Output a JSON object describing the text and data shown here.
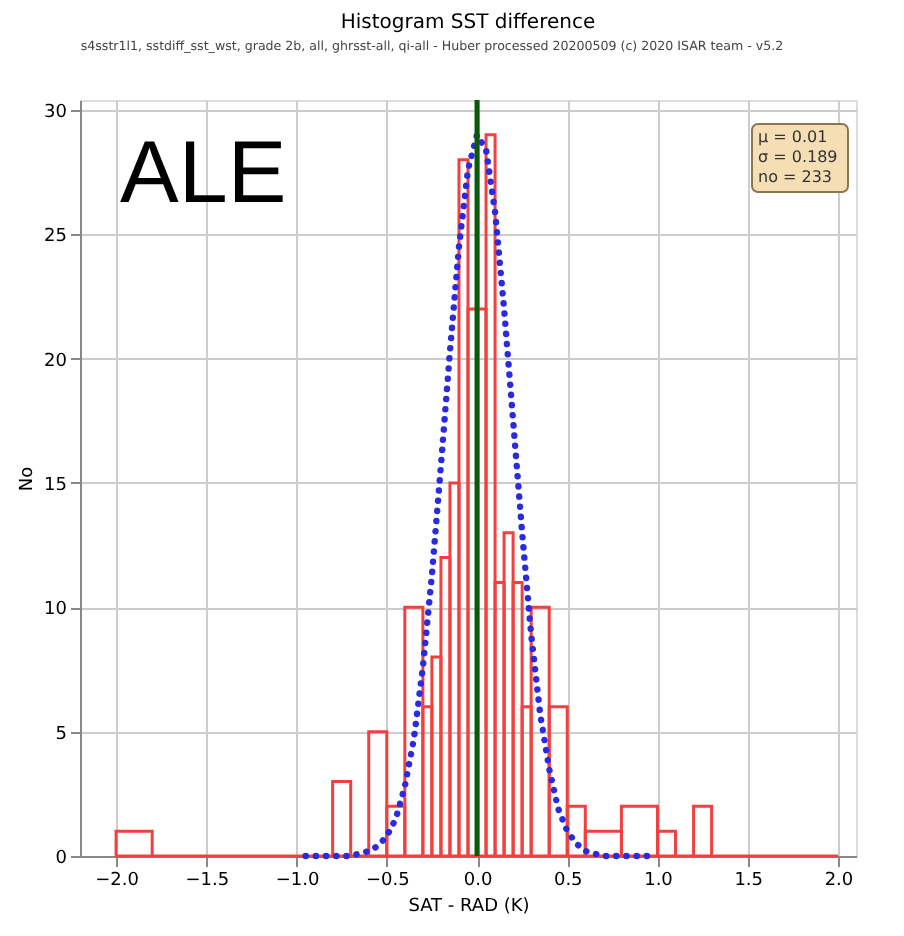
{
  "chart_data": {
    "type": "histogram",
    "title": "Histogram SST difference",
    "xlabel": "SAT - RAD (K)",
    "ylabel": "No",
    "annotations": [
      "s4sstr1l1, sstdiff_sst_wst, grade 2b, all, ghrsst-all, qi-all - Huber processed 20200509 (c) 2020 ISAR team - v5.2",
      "ALE",
      "μ  = 0.01",
      "σ  = 0.189",
      "no = 233"
    ],
    "series": [
      {
        "color": "#f04040",
        "bins": [
          -2.0,
          -1.8,
          -0.8,
          -0.7,
          -0.6,
          -0.5,
          -0.4,
          -0.3,
          -0.25,
          -0.2,
          -0.15,
          -0.1,
          -0.05,
          0.05,
          0.1,
          0.15,
          0.2,
          0.25,
          0.3,
          0.4,
          0.5,
          0.6,
          0.8,
          1.0,
          1.1,
          1.2,
          1.3,
          2.0
        ],
        "values": [
          1,
          0,
          3,
          0,
          5,
          2,
          10,
          6,
          8,
          12,
          15,
          28,
          22,
          29,
          11,
          13,
          11,
          6,
          10,
          6,
          2,
          1,
          2,
          1,
          0,
          2,
          0
        ]
      },
      {
        "type": "line",
        "color": "#2a2ae0",
        "line_style": "dotted",
        "x": [
          -0.95,
          -0.8,
          -0.7,
          -0.6,
          -0.55,
          -0.5,
          -0.45,
          -0.4,
          -0.35,
          -0.3,
          -0.25,
          -0.2,
          -0.15,
          -0.1,
          -0.05,
          0.0,
          0.05,
          0.1,
          0.15,
          0.2,
          0.25,
          0.3,
          0.35,
          0.4,
          0.45,
          0.5,
          0.55,
          0.6,
          0.7,
          0.8,
          0.97
        ],
        "values": [
          0,
          0,
          0,
          0.2,
          0.4,
          0.8,
          1.5,
          2.8,
          4.7,
          7.6,
          11.3,
          15.7,
          20.3,
          24.5,
          27.6,
          29.0,
          28.4,
          25.9,
          22.0,
          17.5,
          13.0,
          8.9,
          5.7,
          3.5,
          1.9,
          1.0,
          0.5,
          0.2,
          0,
          0,
          0
        ]
      }
    ],
    "ref_lines": [
      {
        "axis": "x",
        "value": 0,
        "color": "#0b5a0b"
      }
    ],
    "xlim": [
      -2.2,
      2.1
    ],
    "ylim": [
      0,
      30.4
    ],
    "xticks": [
      {
        "value": -2,
        "label": "−2.0"
      },
      {
        "value": -1.5,
        "label": "−1.5"
      },
      {
        "value": -1,
        "label": "−1.0"
      },
      {
        "value": -0.5,
        "label": "−0.5"
      },
      {
        "value": 0,
        "label": "0.0"
      },
      {
        "value": 0.5,
        "label": "0.5"
      },
      {
        "value": 1,
        "label": "1.0"
      },
      {
        "value": 1.5,
        "label": "1.5"
      },
      {
        "value": 2,
        "label": "2.0"
      }
    ],
    "yticks": [
      0,
      5,
      10,
      15,
      20,
      25,
      30
    ],
    "grid": true
  }
}
